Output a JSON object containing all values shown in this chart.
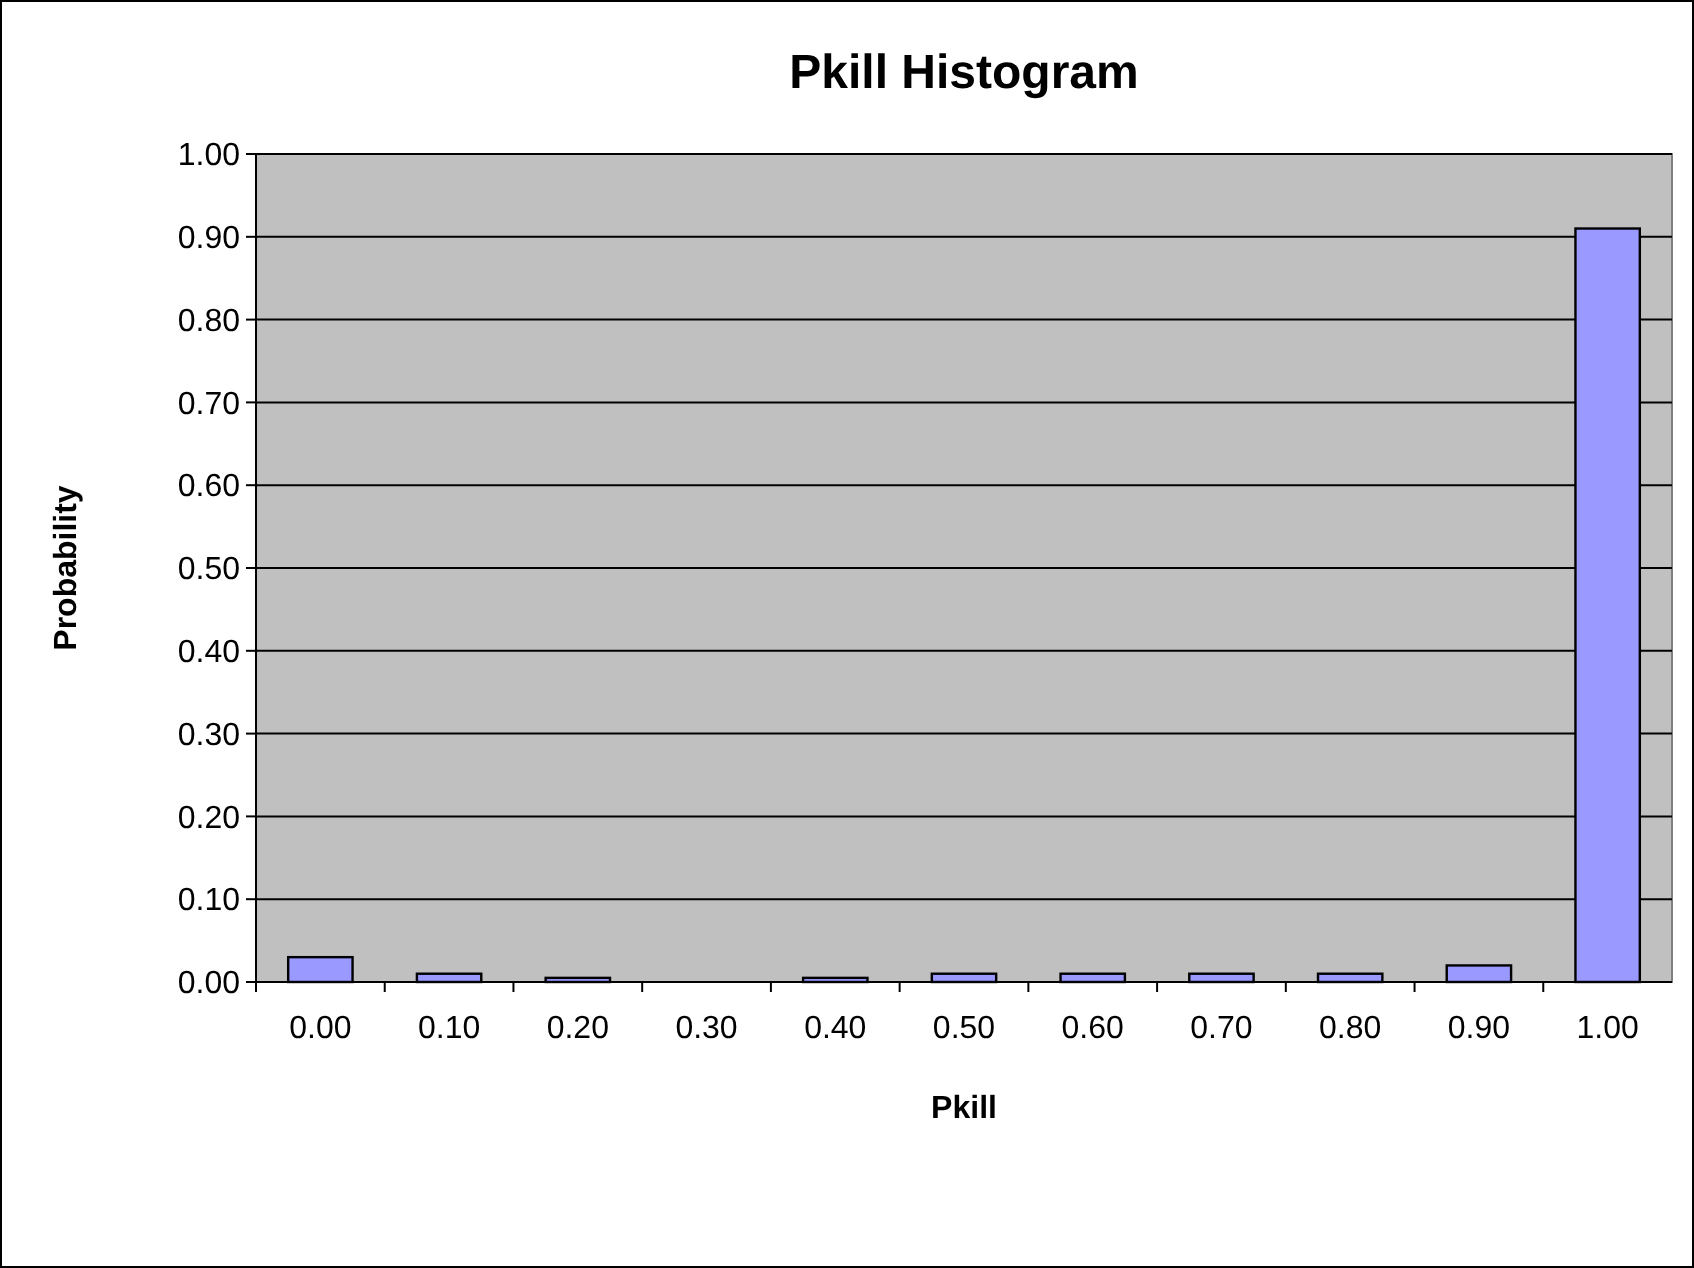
{
  "chart_data": {
    "type": "bar",
    "title": "Pkill Histogram",
    "xlabel": "Pkill",
    "ylabel": "Probability",
    "categories": [
      "0.00",
      "0.10",
      "0.20",
      "0.30",
      "0.40",
      "0.50",
      "0.60",
      "0.70",
      "0.80",
      "0.90",
      "1.00"
    ],
    "values": [
      0.03,
      0.01,
      0.005,
      0,
      0.005,
      0.01,
      0.01,
      0.01,
      0.01,
      0.02,
      0.91
    ],
    "color": "#9999ff",
    "ylim": [
      0,
      1
    ],
    "yticks": [
      {
        "value": 0,
        "label": "0.00"
      },
      {
        "value": 0.1,
        "label": "0.10"
      },
      {
        "value": 0.2,
        "label": "0.20"
      },
      {
        "value": 0.3,
        "label": "0.30"
      },
      {
        "value": 0.4,
        "label": "0.40"
      },
      {
        "value": 0.5,
        "label": "0.50"
      },
      {
        "value": 0.6,
        "label": "0.60"
      },
      {
        "value": 0.7,
        "label": "0.70"
      },
      {
        "value": 0.8,
        "label": "0.80"
      },
      {
        "value": 0.9,
        "label": "0.90"
      },
      {
        "value": 1,
        "label": "1.00"
      }
    ],
    "grid": "y"
  }
}
